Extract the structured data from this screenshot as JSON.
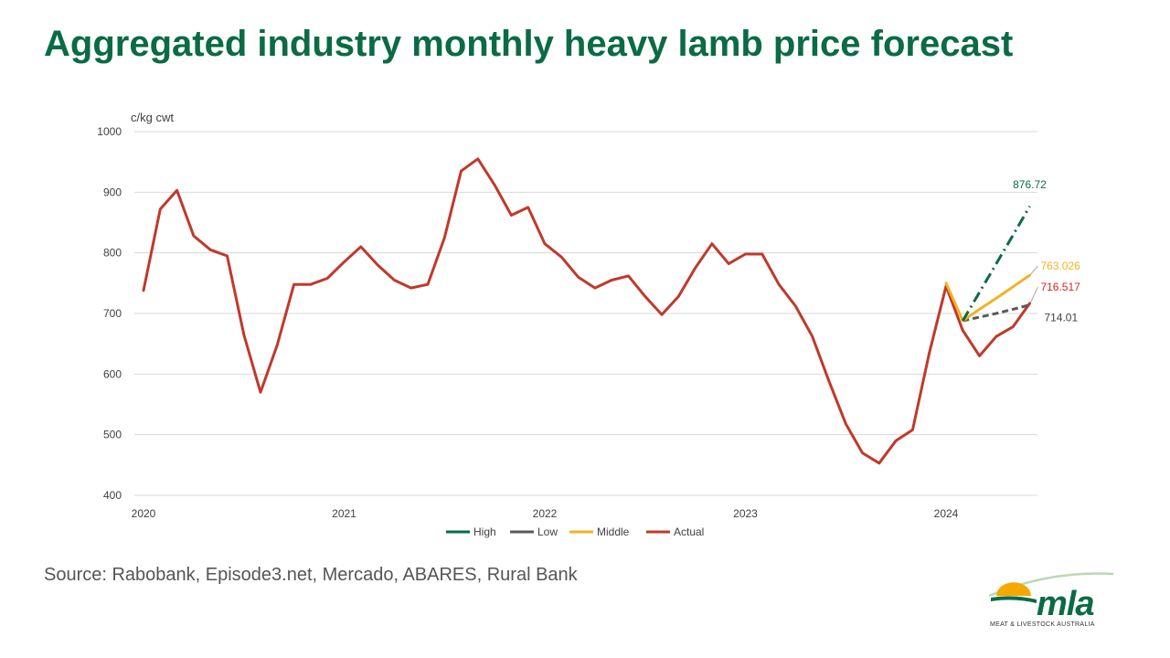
{
  "title": "Aggregated industry monthly heavy lamb price forecast",
  "source": "Source: Rabobank, Episode3.net, Mercado, ABARES, Rural Bank",
  "logo": {
    "text": "mla",
    "tagline": "MEAT & LIVESTOCK AUSTRALIA"
  },
  "colors": {
    "title": "#0a6b45",
    "High": "#0a6b45",
    "Low": "#595959",
    "Middle": "#f0b323",
    "Actual": "#c0392b",
    "grid": "#d9d9d9",
    "logo_sun": "#f5a800",
    "logo_green": "#0a6b45"
  },
  "chart_data": {
    "type": "line",
    "ylabel": "c/kg cwt",
    "xlabel": "",
    "ylim": [
      400,
      1000
    ],
    "yticks": [
      400,
      500,
      600,
      700,
      800,
      900,
      1000
    ],
    "xticks": [
      "2020",
      "2021",
      "2022",
      "2023",
      "2024"
    ],
    "x_start": "2020-01",
    "grid": "horizontal",
    "legend_position": "bottom",
    "series": [
      {
        "name": "High",
        "style": "dash-dot",
        "x": [
          "2024-02",
          "2024-03",
          "2024-04",
          "2024-05",
          "2024-06"
        ],
        "values": [
          688,
          735,
          782,
          829,
          876.72
        ],
        "end_label": "876.72"
      },
      {
        "name": "Low",
        "style": "dashed",
        "x": [
          "2024-02",
          "2024-03",
          "2024-04",
          "2024-05",
          "2024-06"
        ],
        "values": [
          688,
          694,
          700,
          707,
          714.01
        ],
        "end_label": "714.01"
      },
      {
        "name": "Middle",
        "style": "solid",
        "x": [
          "2024-01",
          "2024-02",
          "2024-03",
          "2024-04",
          "2024-05",
          "2024-06"
        ],
        "values": [
          750,
          688,
          707,
          725,
          744,
          763.026
        ],
        "end_label": "763.026"
      },
      {
        "name": "Actual",
        "style": "solid",
        "x": [
          "2020-01",
          "2020-02",
          "2020-03",
          "2020-04",
          "2020-05",
          "2020-06",
          "2020-07",
          "2020-08",
          "2020-09",
          "2020-10",
          "2020-11",
          "2020-12",
          "2021-01",
          "2021-02",
          "2021-03",
          "2021-04",
          "2021-05",
          "2021-06",
          "2021-07",
          "2021-08",
          "2021-09",
          "2021-10",
          "2021-11",
          "2021-12",
          "2022-01",
          "2022-02",
          "2022-03",
          "2022-04",
          "2022-05",
          "2022-06",
          "2022-07",
          "2022-08",
          "2022-09",
          "2022-10",
          "2022-11",
          "2022-12",
          "2023-01",
          "2023-02",
          "2023-03",
          "2023-04",
          "2023-05",
          "2023-06",
          "2023-07",
          "2023-08",
          "2023-09",
          "2023-10",
          "2023-11",
          "2023-12",
          "2024-01",
          "2024-02",
          "2024-03",
          "2024-04",
          "2024-05",
          "2024-06"
        ],
        "values": [
          738,
          872,
          903,
          828,
          805,
          795,
          665,
          570,
          648,
          748,
          748,
          758,
          785,
          810,
          780,
          755,
          742,
          748,
          825,
          935,
          955,
          912,
          862,
          875,
          815,
          793,
          760,
          742,
          755,
          762,
          728,
          698,
          728,
          775,
          815,
          782,
          798,
          798,
          748,
          712,
          662,
          588,
          518,
          470,
          453,
          490,
          508,
          635,
          745,
          672,
          630,
          662,
          678,
          716.517
        ],
        "end_label": "716.517"
      }
    ]
  }
}
